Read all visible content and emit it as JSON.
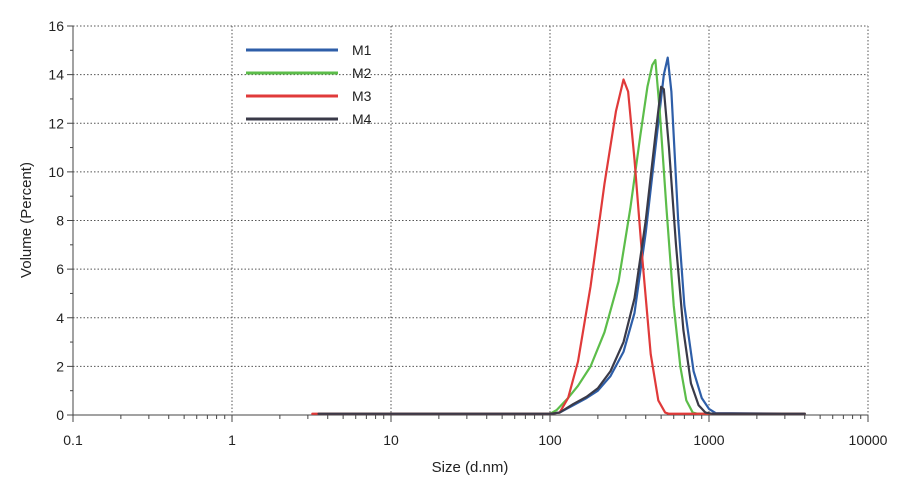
{
  "chart_data": {
    "type": "line",
    "title": "",
    "xlabel": "Size (d.nm)",
    "ylabel": "Volume (Percent)",
    "xscale": "log",
    "xlim": [
      0.1,
      10000
    ],
    "ylim": [
      0,
      16
    ],
    "xticks": [
      0.1,
      1,
      10,
      100,
      1000,
      10000
    ],
    "xtick_labels": [
      "0.1",
      "1",
      "10",
      "100",
      "1000",
      "10000"
    ],
    "yticks": [
      0,
      2,
      4,
      6,
      8,
      10,
      12,
      14,
      16
    ],
    "ytick_labels": [
      "0",
      "2",
      "4",
      "6",
      "8",
      "10",
      "12",
      "14",
      "16"
    ],
    "grid": true,
    "legend_position": "top-left",
    "series": [
      {
        "name": "M1",
        "color": "#2e5ea8",
        "points": [
          [
            3.5,
            0.05
          ],
          [
            100,
            0.05
          ],
          [
            115,
            0.1
          ],
          [
            140,
            0.4
          ],
          [
            170,
            0.7
          ],
          [
            200,
            1.0
          ],
          [
            240,
            1.6
          ],
          [
            290,
            2.6
          ],
          [
            340,
            4.2
          ],
          [
            400,
            7.5
          ],
          [
            470,
            11.5
          ],
          [
            520,
            14.0
          ],
          [
            550,
            14.7
          ],
          [
            580,
            13.3
          ],
          [
            640,
            8.0
          ],
          [
            700,
            4.5
          ],
          [
            800,
            1.8
          ],
          [
            900,
            0.7
          ],
          [
            1000,
            0.25
          ],
          [
            1100,
            0.08
          ],
          [
            4000,
            0.05
          ]
        ]
      },
      {
        "name": "M2",
        "color": "#5cbd4a",
        "points": [
          [
            3.6,
            0.05
          ],
          [
            100,
            0.05
          ],
          [
            110,
            0.2
          ],
          [
            130,
            0.7
          ],
          [
            150,
            1.2
          ],
          [
            180,
            2.0
          ],
          [
            220,
            3.4
          ],
          [
            270,
            5.5
          ],
          [
            320,
            8.5
          ],
          [
            370,
            11.5
          ],
          [
            410,
            13.5
          ],
          [
            440,
            14.4
          ],
          [
            460,
            14.6
          ],
          [
            490,
            12.5
          ],
          [
            540,
            8.5
          ],
          [
            600,
            4.5
          ],
          [
            660,
            2.0
          ],
          [
            720,
            0.6
          ],
          [
            790,
            0.1
          ],
          [
            850,
            0.05
          ],
          [
            4000,
            0.05
          ]
        ]
      },
      {
        "name": "M3",
        "color": "#e03a3a",
        "points": [
          [
            3.2,
            0.05
          ],
          [
            100,
            0.05
          ],
          [
            115,
            0.1
          ],
          [
            130,
            0.7
          ],
          [
            150,
            2.2
          ],
          [
            180,
            5.3
          ],
          [
            220,
            9.5
          ],
          [
            260,
            12.5
          ],
          [
            290,
            13.8
          ],
          [
            310,
            13.3
          ],
          [
            340,
            10.5
          ],
          [
            380,
            6.5
          ],
          [
            430,
            2.5
          ],
          [
            480,
            0.6
          ],
          [
            530,
            0.1
          ],
          [
            560,
            0.05
          ],
          [
            4000,
            0.05
          ]
        ]
      },
      {
        "name": "M4",
        "color": "#3a3a48",
        "points": [
          [
            3.5,
            0.05
          ],
          [
            100,
            0.05
          ],
          [
            115,
            0.1
          ],
          [
            140,
            0.45
          ],
          [
            170,
            0.75
          ],
          [
            200,
            1.1
          ],
          [
            240,
            1.8
          ],
          [
            290,
            3.0
          ],
          [
            340,
            4.8
          ],
          [
            400,
            8.0
          ],
          [
            460,
            11.5
          ],
          [
            500,
            13.5
          ],
          [
            520,
            13.4
          ],
          [
            560,
            11.0
          ],
          [
            620,
            7.0
          ],
          [
            690,
            3.5
          ],
          [
            770,
            1.3
          ],
          [
            860,
            0.4
          ],
          [
            950,
            0.1
          ],
          [
            1050,
            0.05
          ],
          [
            4000,
            0.05
          ]
        ]
      }
    ]
  }
}
